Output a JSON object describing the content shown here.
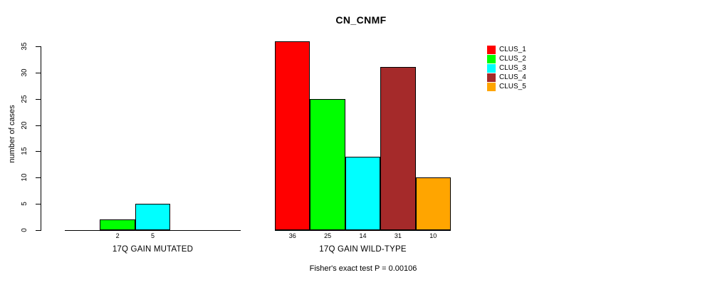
{
  "title": "CN_CNMF",
  "footnote": "Fisher's exact test P = 0.00106",
  "y_axis": {
    "label": "number of cases",
    "ticks": [
      0,
      5,
      10,
      15,
      20,
      25,
      30,
      35
    ]
  },
  "legend": {
    "items": [
      {
        "label": "CLUS_1",
        "color": "#FF0000"
      },
      {
        "label": "CLUS_2",
        "color": "#00FF00"
      },
      {
        "label": "CLUS_3",
        "color": "#00FFFF"
      },
      {
        "label": "CLUS_4",
        "color": "#A52A2A"
      },
      {
        "label": "CLUS_5",
        "color": "#FFA500"
      }
    ]
  },
  "chart_data": {
    "type": "bar",
    "title": "CN_CNMF",
    "xlabel": "",
    "ylabel": "number of cases",
    "ylim": [
      0,
      35
    ],
    "grid": false,
    "legend_position": "top-right",
    "series_names": [
      "CLUS_1",
      "CLUS_2",
      "CLUS_3",
      "CLUS_4",
      "CLUS_5"
    ],
    "series_colors": [
      "#FF0000",
      "#00FF00",
      "#00FFFF",
      "#A52A2A",
      "#FFA500"
    ],
    "groups": [
      {
        "label": "17Q GAIN MUTATED",
        "values": [
          0,
          2,
          5,
          0,
          0
        ]
      },
      {
        "label": "17Q GAIN WILD-TYPE",
        "values": [
          36,
          25,
          14,
          31,
          10
        ]
      }
    ],
    "annotation": "Fisher's exact test P = 0.00106"
  }
}
